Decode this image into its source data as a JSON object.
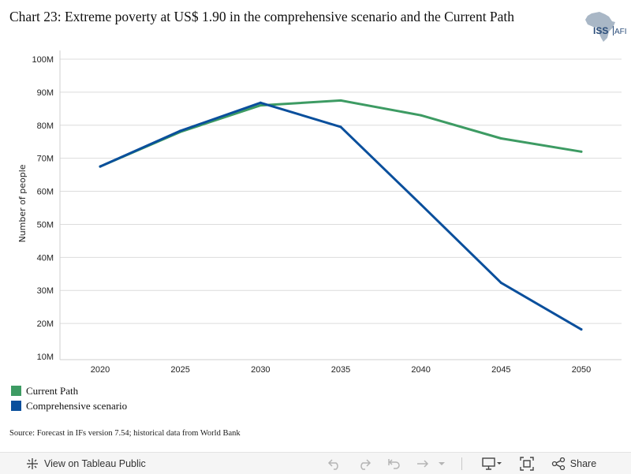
{
  "title": "Chart 23: Extreme poverty at US$ 1.90 in the comprehensive scenario and the Current Path",
  "logo": {
    "text_main": "ISS",
    "text_side": "AFI"
  },
  "source": "Source: Forecast in IFs version 7.54; historical data from World Bank",
  "legend": [
    {
      "name": "Current Path",
      "color": "#3d9b63"
    },
    {
      "name": "Comprehensive scenario",
      "color": "#0a4f9c"
    }
  ],
  "chart_data": {
    "type": "line",
    "title": "Chart 23: Extreme poverty at US$ 1.90 in the comprehensive scenario and the Current Path",
    "ylabel": "Number of people",
    "xlabel": "",
    "x": [
      2020,
      2025,
      2030,
      2035,
      2040,
      2045,
      2050
    ],
    "x_tick_labels": [
      "2020",
      "2025",
      "2030",
      "2035",
      "2040",
      "2045",
      "2050"
    ],
    "ylim": [
      10,
      100
    ],
    "y_ticks": [
      10,
      20,
      30,
      40,
      50,
      60,
      70,
      80,
      90,
      100
    ],
    "y_tick_labels": [
      "10M",
      "20M",
      "30M",
      "40M",
      "50M",
      "60M",
      "70M",
      "80M",
      "90M",
      "100M"
    ],
    "y_unit": "millions of people",
    "grid": "horizontal",
    "legend_position": "bottom-left",
    "series": [
      {
        "name": "Current Path",
        "color": "#3d9b63",
        "values": [
          67.5,
          78,
          86,
          87.5,
          83,
          76,
          72
        ]
      },
      {
        "name": "Comprehensive scenario",
        "color": "#0a4f9c",
        "values": [
          67.5,
          78.3,
          86.8,
          79.5,
          56,
          32.3,
          18.2
        ]
      }
    ]
  },
  "toolbar": {
    "view_label": "View on Tableau Public",
    "share_label": "Share",
    "icons": [
      "tableau-logo-icon",
      "undo-icon",
      "redo-icon",
      "revert-icon",
      "refresh-icon",
      "dropdown-icon",
      "download-icon",
      "fullscreen-icon",
      "share-icon"
    ]
  }
}
